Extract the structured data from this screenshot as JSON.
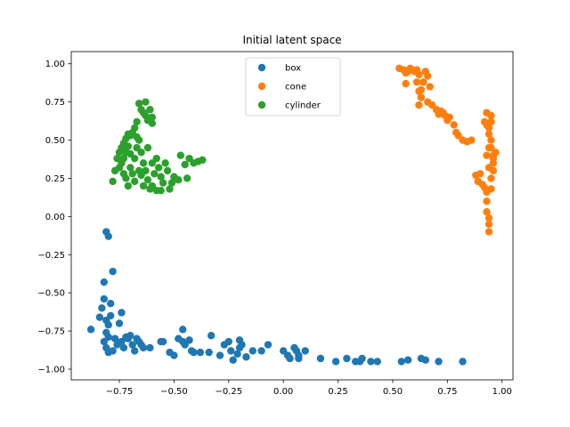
{
  "chart_data": {
    "type": "scatter",
    "title": "Initial latent space",
    "xlabel": "",
    "ylabel": "",
    "xlim": [
      -0.97,
      1.05
    ],
    "ylim": [
      -1.07,
      1.08
    ],
    "xticks": [
      -0.75,
      -0.5,
      -0.25,
      0.0,
      0.25,
      0.5,
      0.75,
      1.0
    ],
    "xtick_labels": [
      "−0.75",
      "−0.50",
      "−0.25",
      "0.00",
      "0.25",
      "0.50",
      "0.75",
      "1.00"
    ],
    "yticks": [
      -1.0,
      -0.75,
      -0.5,
      -0.25,
      0.0,
      0.25,
      0.5,
      0.75,
      1.0
    ],
    "ytick_labels": [
      "−1.00",
      "−0.75",
      "−0.50",
      "−0.25",
      "0.00",
      "0.25",
      "0.50",
      "0.75",
      "1.00"
    ],
    "grid": false,
    "legend_position": "top-center",
    "series": [
      {
        "name": "box",
        "color": "#1f77b4",
        "points": [
          [
            -0.88,
            -0.74
          ],
          [
            -0.84,
            -0.66
          ],
          [
            -0.83,
            -0.6
          ],
          [
            -0.82,
            -0.54
          ],
          [
            -0.82,
            -0.43
          ],
          [
            -0.81,
            -0.1
          ],
          [
            -0.8,
            -0.13
          ],
          [
            -0.81,
            -0.68
          ],
          [
            -0.8,
            -0.71
          ],
          [
            -0.81,
            -0.76
          ],
          [
            -0.8,
            -0.79
          ],
          [
            -0.82,
            -0.82
          ],
          [
            -0.81,
            -0.86
          ],
          [
            -0.8,
            -0.89
          ],
          [
            -0.79,
            -0.57
          ],
          [
            -0.79,
            -0.65
          ],
          [
            -0.78,
            -0.36
          ],
          [
            -0.78,
            -0.88
          ],
          [
            -0.77,
            -0.8
          ],
          [
            -0.76,
            -0.84
          ],
          [
            -0.75,
            -0.7
          ],
          [
            -0.74,
            -0.63
          ],
          [
            -0.74,
            -0.82
          ],
          [
            -0.73,
            -0.86
          ],
          [
            -0.72,
            -0.79
          ],
          [
            -0.71,
            -0.8
          ],
          [
            -0.7,
            -0.78
          ],
          [
            -0.69,
            -0.84
          ],
          [
            -0.68,
            -0.88
          ],
          [
            -0.67,
            -0.8
          ],
          [
            -0.66,
            -0.82
          ],
          [
            -0.65,
            -0.84
          ],
          [
            -0.64,
            -0.86
          ],
          [
            -0.61,
            -0.86
          ],
          [
            -0.56,
            -0.82
          ],
          [
            -0.55,
            -0.82
          ],
          [
            -0.52,
            -0.89
          ],
          [
            -0.5,
            -0.91
          ],
          [
            -0.48,
            -0.8
          ],
          [
            -0.46,
            -0.74
          ],
          [
            -0.46,
            -0.82
          ],
          [
            -0.45,
            -0.84
          ],
          [
            -0.43,
            -0.81
          ],
          [
            -0.42,
            -0.88
          ],
          [
            -0.41,
            -0.89
          ],
          [
            -0.38,
            -0.89
          ],
          [
            -0.34,
            -0.89
          ],
          [
            -0.33,
            -0.78
          ],
          [
            -0.29,
            -0.91
          ],
          [
            -0.27,
            -0.84
          ],
          [
            -0.25,
            -0.82
          ],
          [
            -0.24,
            -0.88
          ],
          [
            -0.23,
            -0.94
          ],
          [
            -0.21,
            -0.9
          ],
          [
            -0.2,
            -0.86
          ],
          [
            -0.2,
            -0.81
          ],
          [
            -0.19,
            -0.84
          ],
          [
            -0.17,
            -0.92
          ],
          [
            -0.14,
            -0.88
          ],
          [
            -0.1,
            -0.88
          ],
          [
            -0.07,
            -0.84
          ],
          [
            0.0,
            -0.88
          ],
          [
            0.02,
            -0.91
          ],
          [
            0.03,
            -0.93
          ],
          [
            0.05,
            -0.86
          ],
          [
            0.06,
            -0.88
          ],
          [
            0.07,
            -0.91
          ],
          [
            0.07,
            -0.93
          ],
          [
            0.1,
            -0.88
          ],
          [
            0.17,
            -0.93
          ],
          [
            0.24,
            -0.95
          ],
          [
            0.29,
            -0.93
          ],
          [
            0.33,
            -0.95
          ],
          [
            0.35,
            -0.95
          ],
          [
            0.36,
            -0.93
          ],
          [
            0.4,
            -0.95
          ],
          [
            0.43,
            -0.95
          ],
          [
            0.54,
            -0.95
          ],
          [
            0.57,
            -0.94
          ],
          [
            0.63,
            -0.93
          ],
          [
            0.65,
            -0.94
          ],
          [
            0.71,
            -0.95
          ],
          [
            0.82,
            -0.95
          ]
        ]
      },
      {
        "name": "cone",
        "color": "#ff7f0e",
        "points": [
          [
            0.53,
            0.97
          ],
          [
            0.55,
            0.96
          ],
          [
            0.56,
            0.94
          ],
          [
            0.56,
            0.87
          ],
          [
            0.57,
            0.95
          ],
          [
            0.58,
            0.97
          ],
          [
            0.59,
            0.96
          ],
          [
            0.6,
            0.95
          ],
          [
            0.61,
            0.96
          ],
          [
            0.62,
            0.93
          ],
          [
            0.61,
            0.88
          ],
          [
            0.62,
            0.82
          ],
          [
            0.63,
            0.78
          ],
          [
            0.62,
            0.73
          ],
          [
            0.63,
            0.83
          ],
          [
            0.64,
            0.88
          ],
          [
            0.65,
            0.95
          ],
          [
            0.66,
            0.92
          ],
          [
            0.67,
            0.85
          ],
          [
            0.66,
            0.75
          ],
          [
            0.68,
            0.73
          ],
          [
            0.7,
            0.7
          ],
          [
            0.71,
            0.67
          ],
          [
            0.72,
            0.69
          ],
          [
            0.73,
            0.68
          ],
          [
            0.74,
            0.66
          ],
          [
            0.75,
            0.63
          ],
          [
            0.76,
            0.65
          ],
          [
            0.78,
            0.6
          ],
          [
            0.79,
            0.55
          ],
          [
            0.8,
            0.53
          ],
          [
            0.82,
            0.5
          ],
          [
            0.84,
            0.49
          ],
          [
            0.86,
            0.5
          ],
          [
            0.88,
            0.27
          ],
          [
            0.89,
            0.23
          ],
          [
            0.9,
            0.28
          ],
          [
            0.91,
            0.21
          ],
          [
            0.92,
            0.19
          ],
          [
            0.93,
            0.16
          ],
          [
            0.93,
            0.1
          ],
          [
            0.93,
            0.03
          ],
          [
            0.94,
            -0.01
          ],
          [
            0.94,
            -0.05
          ],
          [
            0.94,
            -0.1
          ],
          [
            0.92,
            0.62
          ],
          [
            0.93,
            0.68
          ],
          [
            0.93,
            0.6
          ],
          [
            0.94,
            0.58
          ],
          [
            0.94,
            0.54
          ],
          [
            0.95,
            0.5
          ],
          [
            0.95,
            0.45
          ],
          [
            0.96,
            0.4
          ],
          [
            0.96,
            0.35
          ],
          [
            0.96,
            0.3
          ],
          [
            0.95,
            0.25
          ],
          [
            0.94,
            0.45
          ],
          [
            0.93,
            0.4
          ],
          [
            0.95,
            0.62
          ],
          [
            0.95,
            0.66
          ],
          [
            0.96,
            0.38
          ],
          [
            0.97,
            0.42
          ],
          [
            0.95,
            0.18
          ],
          [
            0.94,
            0.32
          ]
        ]
      },
      {
        "name": "cylinder",
        "color": "#2ca02c",
        "points": [
          [
            -0.66,
            0.74
          ],
          [
            -0.65,
            0.7
          ],
          [
            -0.64,
            0.68
          ],
          [
            -0.63,
            0.75
          ],
          [
            -0.63,
            0.66
          ],
          [
            -0.62,
            0.63
          ],
          [
            -0.61,
            0.7
          ],
          [
            -0.6,
            0.65
          ],
          [
            -0.6,
            0.61
          ],
          [
            -0.68,
            0.58
          ],
          [
            -0.67,
            0.62
          ],
          [
            -0.69,
            0.55
          ],
          [
            -0.7,
            0.53
          ],
          [
            -0.71,
            0.54
          ],
          [
            -0.72,
            0.51
          ],
          [
            -0.73,
            0.48
          ],
          [
            -0.74,
            0.45
          ],
          [
            -0.75,
            0.42
          ],
          [
            -0.76,
            0.38
          ],
          [
            -0.77,
            0.3
          ],
          [
            -0.78,
            0.23
          ],
          [
            -0.74,
            0.35
          ],
          [
            -0.73,
            0.28
          ],
          [
            -0.72,
            0.25
          ],
          [
            -0.71,
            0.2
          ],
          [
            -0.7,
            0.32
          ],
          [
            -0.69,
            0.28
          ],
          [
            -0.68,
            0.38
          ],
          [
            -0.67,
            0.45
          ],
          [
            -0.66,
            0.5
          ],
          [
            -0.65,
            0.42
          ],
          [
            -0.64,
            0.35
          ],
          [
            -0.63,
            0.3
          ],
          [
            -0.62,
            0.24
          ],
          [
            -0.61,
            0.18
          ],
          [
            -0.6,
            0.2
          ],
          [
            -0.59,
            0.28
          ],
          [
            -0.58,
            0.38
          ],
          [
            -0.57,
            0.32
          ],
          [
            -0.56,
            0.26
          ],
          [
            -0.55,
            0.22
          ],
          [
            -0.54,
            0.35
          ],
          [
            -0.53,
            0.3
          ],
          [
            -0.52,
            0.18
          ],
          [
            -0.51,
            0.22
          ],
          [
            -0.5,
            0.26
          ],
          [
            -0.48,
            0.24
          ],
          [
            -0.47,
            0.4
          ],
          [
            -0.45,
            0.34
          ],
          [
            -0.44,
            0.25
          ],
          [
            -0.43,
            0.38
          ],
          [
            -0.41,
            0.35
          ],
          [
            -0.39,
            0.36
          ],
          [
            -0.37,
            0.37
          ],
          [
            -0.65,
            0.27
          ],
          [
            -0.64,
            0.2
          ],
          [
            -0.66,
            0.3
          ],
          [
            -0.68,
            0.23
          ],
          [
            -0.7,
            0.41
          ],
          [
            -0.71,
            0.46
          ],
          [
            -0.72,
            0.42
          ],
          [
            -0.75,
            0.32
          ],
          [
            -0.73,
            0.38
          ],
          [
            -0.67,
            0.52
          ],
          [
            -0.62,
            0.45
          ],
          [
            -0.58,
            0.17
          ],
          [
            -0.6,
            0.35
          ],
          [
            -0.56,
            0.17
          ]
        ]
      }
    ]
  }
}
